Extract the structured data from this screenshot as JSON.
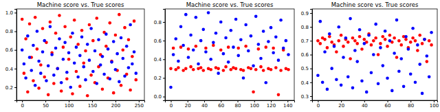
{
  "chart_data": [
    {
      "type": "scatter",
      "title": "Machine score vs. True scores",
      "x": [
        0,
        4,
        8,
        12,
        16,
        20,
        24,
        28,
        32,
        36,
        40,
        44,
        48,
        52,
        56,
        60,
        64,
        68,
        72,
        76,
        80,
        84,
        88,
        92,
        96,
        100,
        104,
        108,
        112,
        116,
        120,
        124,
        128,
        132,
        136,
        140,
        144,
        148,
        152,
        156,
        160,
        164,
        168,
        172,
        176,
        180,
        184,
        188,
        192,
        196,
        200,
        204,
        208,
        212,
        216,
        220,
        224,
        228,
        232,
        236,
        240,
        244
      ],
      "series": [
        {
          "color": "#ff0000",
          "values": [
            0.93,
            0.35,
            0.72,
            0.15,
            0.88,
            0.52,
            0.27,
            0.95,
            0.61,
            0.19,
            0.44,
            0.83,
            0.31,
            0.68,
            0.12,
            0.9,
            0.57,
            0.24,
            0.78,
            0.4,
            0.97,
            0.16,
            0.63,
            0.85,
            0.29,
            0.5,
            0.74,
            0.13,
            0.92,
            0.37,
            0.66,
            0.21,
            0.81,
            0.46,
            0.59,
            0.11,
            0.87,
            0.33,
            0.7,
            0.25,
            0.94,
            0.42,
            0.55,
            0.18,
            0.79,
            0.64,
            0.3,
            0.89,
            0.48,
            0.14,
            0.76,
            0.38,
            0.98,
            0.22,
            0.6,
            0.84,
            0.34,
            0.71,
            0.17,
            0.53,
            0.91,
            0.28
          ]
        },
        {
          "color": "#0000ff",
          "values": [
            0.6,
            0.45,
            0.3,
            0.75,
            0.52,
            0.38,
            0.65,
            0.22,
            0.8,
            0.48,
            0.35,
            0.58,
            0.7,
            0.27,
            0.43,
            0.85,
            0.55,
            0.33,
            0.62,
            0.4,
            0.72,
            0.25,
            0.5,
            0.68,
            0.36,
            0.57,
            0.2,
            0.78,
            0.46,
            0.63,
            0.31,
            0.54,
            0.74,
            0.42,
            0.28,
            0.66,
            0.49,
            0.83,
            0.37,
            0.59,
            0.24,
            0.71,
            0.44,
            0.53,
            0.34,
            0.77,
            0.61,
            0.29,
            0.47,
            0.69,
            0.39,
            0.56,
            0.26,
            0.73,
            0.51,
            0.32,
            0.64,
            0.41,
            0.87,
            0.45,
            0.58,
            0.35
          ]
        }
      ],
      "xlim": [
        -12,
        262
      ],
      "xticks": [
        0,
        50,
        100,
        150,
        200,
        250
      ],
      "ylim": [
        0.06,
        1.04
      ],
      "yticks": [
        0.2,
        0.4,
        0.6,
        0.8,
        {
          "value": 1.0,
          "label": "1.0"
        }
      ]
    },
    {
      "type": "scatter",
      "title": "Machine score vs. True scores",
      "x": [
        0,
        3,
        6,
        9,
        12,
        15,
        18,
        21,
        24,
        27,
        30,
        33,
        36,
        39,
        42,
        45,
        48,
        51,
        54,
        57,
        60,
        63,
        66,
        69,
        72,
        75,
        78,
        81,
        84,
        87,
        90,
        93,
        96,
        99,
        102,
        105,
        108,
        111,
        114,
        117,
        120,
        123,
        126,
        129,
        132,
        135,
        138,
        141
      ],
      "series": [
        {
          "color": "#ff0000",
          "values": [
            0.3,
            0.52,
            0.29,
            0.31,
            0.53,
            0.28,
            0.3,
            0.51,
            0.32,
            0.29,
            0.54,
            0.3,
            0.31,
            0.28,
            0.52,
            0.3,
            0.29,
            0.55,
            0.31,
            0.3,
            0.5,
            0.28,
            0.32,
            0.53,
            0.29,
            0.31,
            0.3,
            0.52,
            0.29,
            0.28,
            0.54,
            0.31,
            0.3,
            0.05,
            0.29,
            0.51,
            0.32,
            0.28,
            0.53,
            0.3,
            0.29,
            0.52,
            0.31,
            0.02,
            0.28,
            0.5,
            0.3,
            0.29
          ]
        },
        {
          "color": "#0000ff",
          "values": [
            0.1,
            0.45,
            0.62,
            0.38,
            0.75,
            0.55,
            0.88,
            0.42,
            0.66,
            0.5,
            0.85,
            0.35,
            0.6,
            0.72,
            0.48,
            0.9,
            0.4,
            0.58,
            0.68,
            0.25,
            0.8,
            0.46,
            0.63,
            0.37,
            0.71,
            0.53,
            0.83,
            0.44,
            0.61,
            0.2,
            0.77,
            0.49,
            0.65,
            0.33,
            0.86,
            0.56,
            0.41,
            0.7,
            0.15,
            0.59,
            0.74,
            0.47,
            0.64,
            0.39,
            0.82,
            0.52,
            0.6,
            0.45
          ]
        }
      ],
      "xlim": [
        -7,
        148
      ],
      "xticks": [
        0,
        20,
        40,
        60,
        80,
        100,
        120,
        140
      ],
      "ylim": [
        -0.04,
        0.94
      ],
      "yticks": [
        {
          "value": 0,
          "label": "0.0"
        },
        0.2,
        0.4,
        0.6,
        0.8
      ]
    },
    {
      "type": "scatter",
      "title": "Machine score vs. True scores",
      "x": [
        0,
        2,
        4,
        6,
        8,
        10,
        12,
        14,
        16,
        18,
        20,
        22,
        24,
        26,
        28,
        30,
        32,
        34,
        36,
        38,
        40,
        42,
        44,
        46,
        48,
        50,
        52,
        54,
        56,
        58,
        60,
        62,
        64,
        66,
        68,
        70,
        72,
        74,
        76,
        78,
        80,
        82,
        84,
        86,
        88,
        90,
        92,
        94,
        96,
        98
      ],
      "series": [
        {
          "color": "#ff0000",
          "values": [
            0.7,
            0.68,
            0.72,
            0.71,
            0.65,
            0.73,
            0.69,
            0.67,
            0.62,
            0.7,
            0.74,
            0.66,
            0.71,
            0.69,
            0.57,
            0.72,
            0.7,
            0.68,
            0.73,
            0.64,
            0.71,
            0.69,
            0.75,
            0.67,
            0.7,
            0.72,
            0.6,
            0.68,
            0.73,
            0.71,
            0.66,
            0.74,
            0.69,
            0.72,
            0.58,
            0.7,
            0.67,
            0.73,
            0.71,
            0.65,
            0.69,
            0.72,
            0.7,
            0.63,
            0.74,
            0.68,
            0.71,
            0.55,
            0.7,
            0.67
          ]
        },
        {
          "color": "#0000ff",
          "values": [
            0.45,
            0.84,
            0.4,
            0.62,
            0.35,
            0.75,
            0.5,
            0.66,
            0.42,
            0.8,
            0.38,
            0.58,
            0.72,
            0.44,
            0.86,
            0.36,
            0.63,
            0.55,
            0.78,
            0.41,
            0.68,
            0.33,
            0.74,
            0.47,
            0.6,
            0.82,
            0.39,
            0.65,
            0.52,
            0.77,
            0.43,
            0.7,
            0.34,
            0.61,
            0.85,
            0.48,
            0.57,
            0.37,
            0.73,
            0.64,
            0.46,
            0.79,
            0.4,
            0.67,
            0.53,
            0.32,
            0.71,
            0.59,
            0.44,
            0.76
          ]
        }
      ],
      "xlim": [
        -5,
        103
      ],
      "xticks": [
        0,
        20,
        40,
        60,
        80,
        100
      ],
      "ylim": [
        0.27,
        0.93
      ],
      "yticks": [
        0.3,
        0.4,
        0.5,
        0.6,
        0.7,
        0.8,
        0.9
      ]
    }
  ]
}
